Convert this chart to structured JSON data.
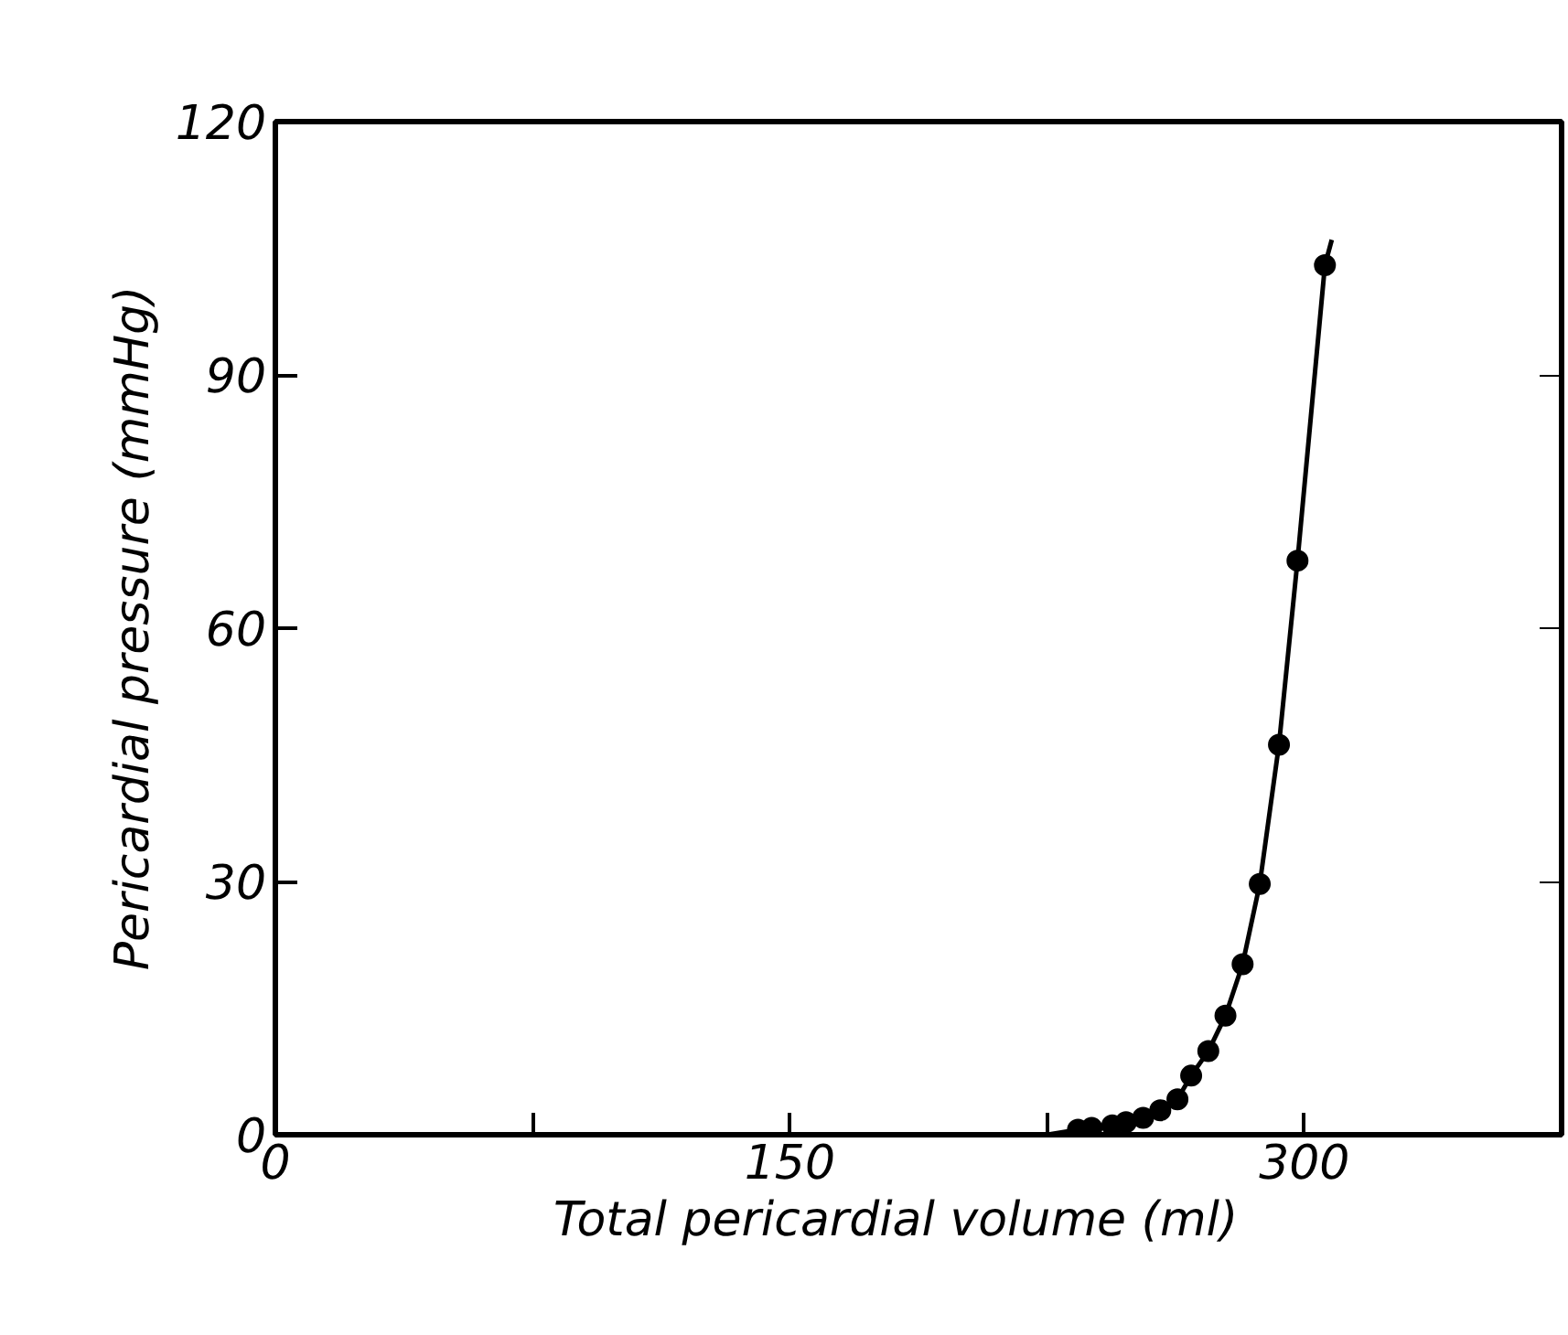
{
  "chart_data": {
    "type": "scatter",
    "xlabel": "Total pericardial volume    (ml)",
    "ylabel": "Pericardial pressure (mmHg)",
    "xlim": [
      0,
      375
    ],
    "ylim": [
      0,
      120
    ],
    "xticks": [
      0,
      {
        "value": 75,
        "label": null
      },
      150,
      {
        "value": 225,
        "label": null
      },
      300,
      {
        "value": 375,
        "label": null
      }
    ],
    "yticks": [
      0,
      30,
      60,
      90,
      120
    ],
    "grid": false,
    "marker": "circle",
    "series": [
      {
        "type": "line",
        "color": "#000000",
        "x": [
          0,
          225,
          234,
          238,
          244,
          248,
          253,
          258,
          263,
          267,
          272,
          277,
          282,
          287,
          292.6,
          298,
          306,
          308
        ],
        "values": [
          0,
          0,
          0.6,
          0.8,
          1.1,
          1.5,
          2.0,
          2.9,
          4.2,
          7.0,
          9.9,
          14.1,
          20.2,
          29.7,
          46.2,
          68,
          103,
          106
        ],
        "marker": "none"
      },
      {
        "color": "#000000",
        "x": [
          234,
          238,
          244,
          248,
          253,
          258,
          263,
          267,
          272,
          277,
          282,
          287,
          292.6,
          298,
          306
        ],
        "values": [
          0.6,
          0.8,
          1.1,
          1.5,
          2.0,
          2.9,
          4.2,
          7.0,
          9.9,
          14.1,
          20.2,
          29.7,
          46.2,
          68,
          103
        ]
      }
    ]
  }
}
